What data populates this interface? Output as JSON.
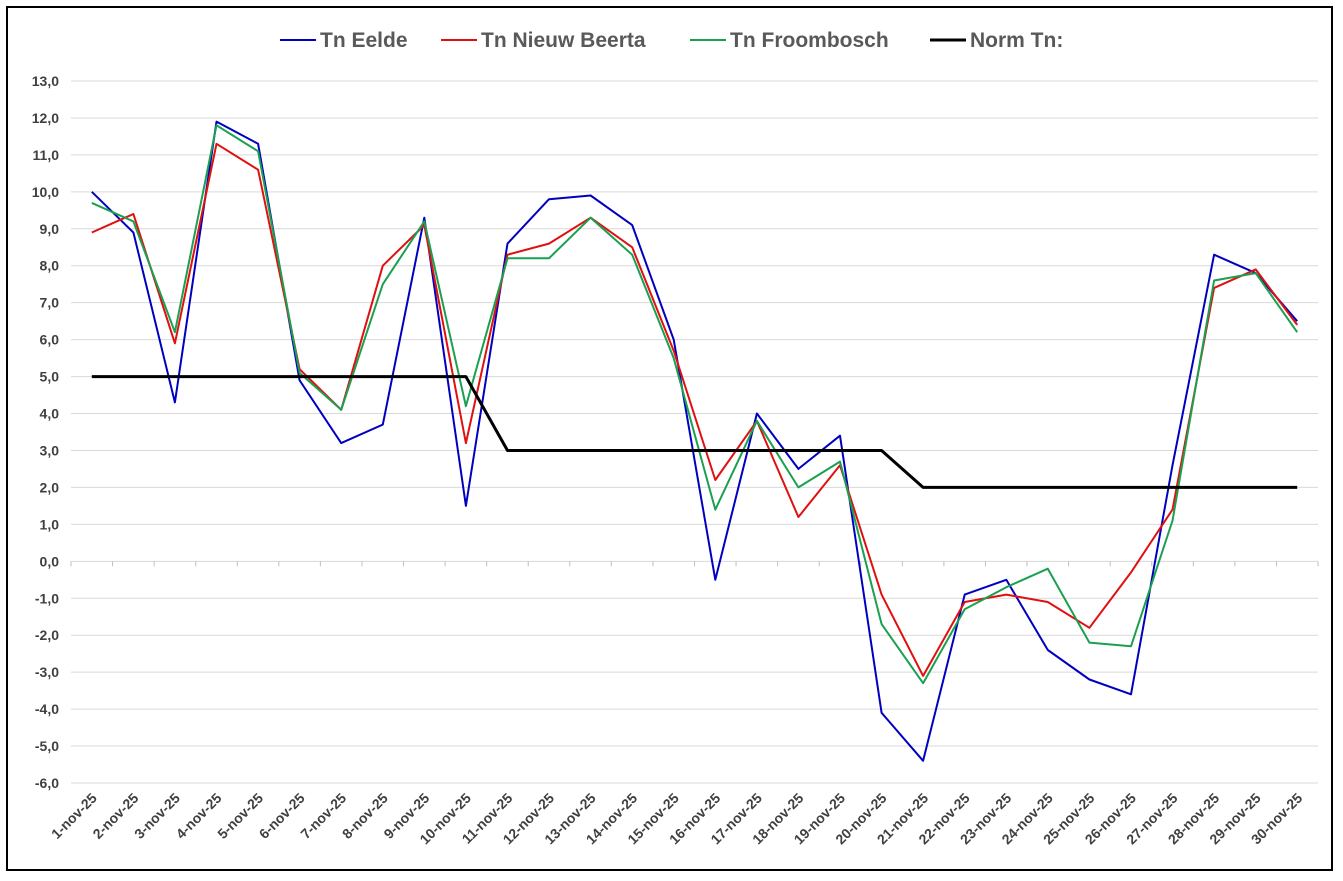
{
  "chart_data": {
    "type": "line",
    "title": "",
    "xlabel": "",
    "ylabel": "",
    "ylim": [
      -6,
      13
    ],
    "ytick_step": 1,
    "ytick_labels": [
      "-6,0",
      "-5,0",
      "-4,0",
      "-3,0",
      "-2,0",
      "-1,0",
      "0,0",
      "1,0",
      "2,0",
      "3,0",
      "4,0",
      "5,0",
      "6,0",
      "7,0",
      "8,0",
      "9,0",
      "10,0",
      "11,0",
      "12,0",
      "13,0"
    ],
    "grid": "horizontal",
    "legend_position": "top",
    "categories": [
      "1-nov-25",
      "2-nov-25",
      "3-nov-25",
      "4-nov-25",
      "5-nov-25",
      "6-nov-25",
      "7-nov-25",
      "8-nov-25",
      "9-nov-25",
      "10-nov-25",
      "11-nov-25",
      "12-nov-25",
      "13-nov-25",
      "14-nov-25",
      "15-nov-25",
      "16-nov-25",
      "17-nov-25",
      "18-nov-25",
      "19-nov-25",
      "20-nov-25",
      "21-nov-25",
      "22-nov-25",
      "23-nov-25",
      "24-nov-25",
      "25-nov-25",
      "26-nov-25",
      "27-nov-25",
      "28-nov-25",
      "29-nov-25",
      "30-nov-25"
    ],
    "series": [
      {
        "name": "Tn Eelde",
        "color": "#0000c0",
        "values": [
          10.0,
          8.9,
          4.3,
          11.9,
          11.3,
          4.9,
          3.2,
          3.7,
          9.3,
          1.5,
          8.6,
          9.8,
          9.9,
          9.1,
          6.0,
          -0.5,
          4.0,
          2.5,
          3.4,
          -4.1,
          -5.4,
          -0.9,
          -0.5,
          -2.4,
          -3.2,
          -3.6,
          2.6,
          8.3,
          7.8,
          6.5
        ]
      },
      {
        "name": "Tn Nieuw Beerta",
        "color": "#e01010",
        "values": [
          8.9,
          9.4,
          5.9,
          11.3,
          10.6,
          5.2,
          4.1,
          8.0,
          9.1,
          3.2,
          8.3,
          8.6,
          9.3,
          8.5,
          5.7,
          2.2,
          3.8,
          1.2,
          2.6,
          -0.9,
          -3.1,
          -1.1,
          -0.9,
          -1.1,
          -1.8,
          -0.3,
          1.4,
          7.4,
          7.9,
          6.4
        ]
      },
      {
        "name": "Tn Froombosch",
        "color": "#1aa050",
        "values": [
          9.7,
          9.2,
          6.2,
          11.8,
          11.1,
          5.1,
          4.1,
          7.5,
          9.2,
          4.2,
          8.2,
          8.2,
          9.3,
          8.3,
          5.5,
          1.4,
          3.8,
          2.0,
          2.7,
          -1.7,
          -3.3,
          -1.3,
          -0.7,
          -0.2,
          -2.2,
          -2.3,
          1.1,
          7.6,
          7.8,
          6.2
        ]
      },
      {
        "name": "Norm Tn:",
        "color": "#000000",
        "values": [
          5,
          5,
          5,
          5,
          5,
          5,
          5,
          5,
          5,
          5,
          3,
          3,
          3,
          3,
          3,
          3,
          3,
          3,
          3,
          3,
          2,
          2,
          2,
          2,
          2,
          2,
          2,
          2,
          2,
          2
        ]
      }
    ]
  }
}
